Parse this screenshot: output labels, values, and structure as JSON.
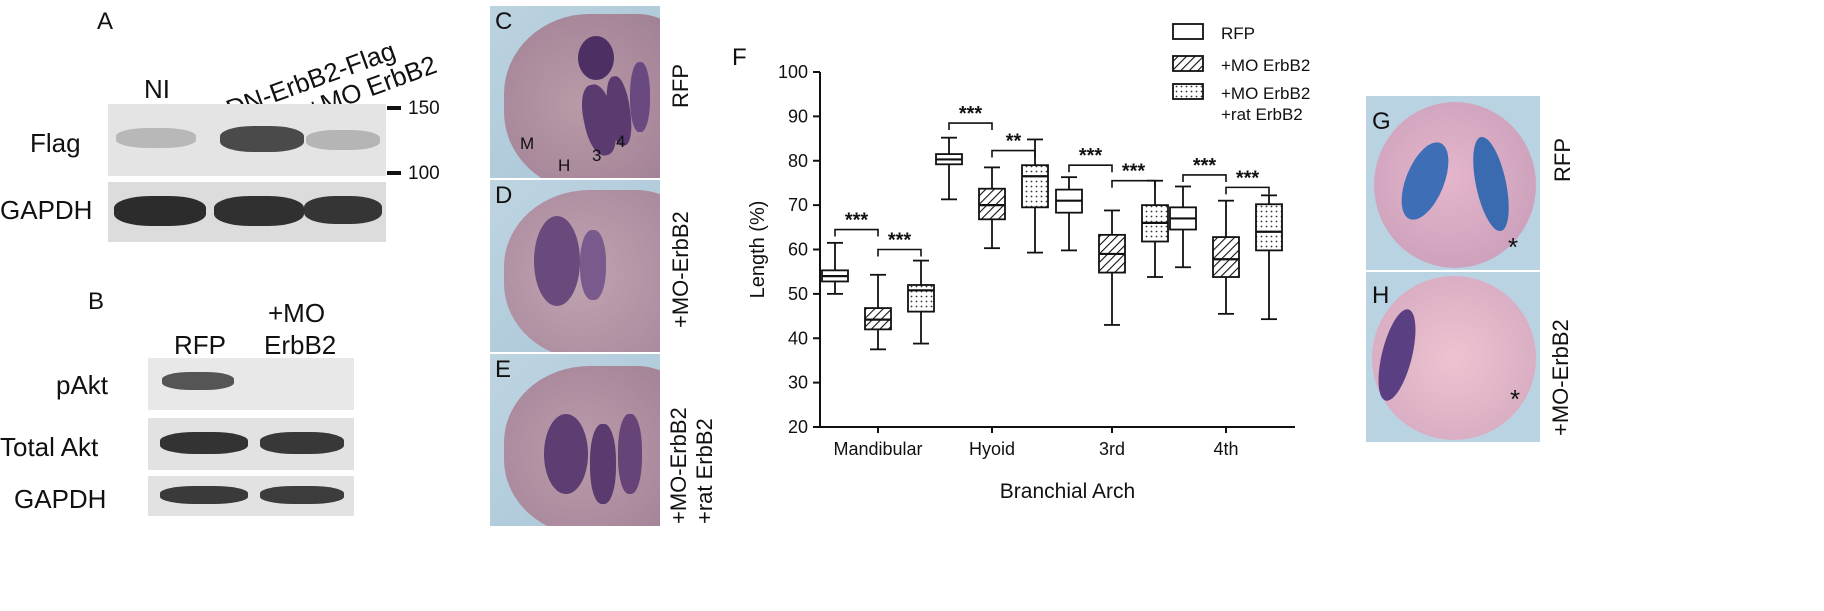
{
  "panels": {
    "A": {
      "label": "A",
      "lane_labels": [
        "NI",
        "DN-ErbB2-Flag",
        "+MO ErbB2"
      ],
      "row_labels": [
        "Flag",
        "GAPDH"
      ],
      "markers": [
        "150",
        "100"
      ]
    },
    "B": {
      "label": "B",
      "lane_labels": [
        "RFP",
        "+MO",
        "ErbB2"
      ],
      "row_labels": [
        "pAkt",
        "Total Akt",
        "GAPDH"
      ]
    },
    "C": {
      "label": "C",
      "side_label": "RFP",
      "arch_labels": [
        "M",
        "H",
        "3",
        "4"
      ]
    },
    "D": {
      "label": "D",
      "side_label": "+MO-ErbB2"
    },
    "E": {
      "label": "E",
      "side_label_1": "+MO-ErbB2",
      "side_label_2": "+rat ErbB2"
    },
    "F": {
      "label": "F"
    },
    "G": {
      "label": "G",
      "side_label": "RFP",
      "asterisk": "*"
    },
    "H": {
      "label": "H",
      "side_label": "+MO-ErbB2",
      "asterisk": "*"
    }
  },
  "chart_data": {
    "type": "boxplot",
    "xlabel": "Branchial Arch",
    "ylabel": "Length (%)",
    "ylim": [
      20,
      100
    ],
    "yticks": [
      20,
      30,
      40,
      50,
      60,
      70,
      80,
      90,
      100
    ],
    "categories": [
      "Mandibular",
      "Hyoid",
      "3rd",
      "4th"
    ],
    "legend_position": "top-right",
    "series": [
      {
        "name": "RFP",
        "pattern": "open",
        "boxes": [
          {
            "min": 50.0,
            "q1": 52.8,
            "median": 54.0,
            "q3": 55.3,
            "max": 61.5
          },
          {
            "min": 71.3,
            "q1": 79.2,
            "median": 80.3,
            "q3": 81.5,
            "max": 85.2
          },
          {
            "min": 59.8,
            "q1": 68.3,
            "median": 71.0,
            "q3": 73.5,
            "max": 76.3
          },
          {
            "min": 56.0,
            "q1": 64.5,
            "median": 67.0,
            "q3": 69.5,
            "max": 74.2
          }
        ]
      },
      {
        "name": "+MO ErbB2",
        "pattern": "hatched",
        "boxes": [
          {
            "min": 37.5,
            "q1": 42.0,
            "median": 44.2,
            "q3": 46.8,
            "max": 54.3
          },
          {
            "min": 60.3,
            "q1": 66.8,
            "median": 70.0,
            "q3": 73.7,
            "max": 78.5
          },
          {
            "min": 43.0,
            "q1": 54.8,
            "median": 59.0,
            "q3": 63.3,
            "max": 68.8
          },
          {
            "min": 45.5,
            "q1": 53.8,
            "median": 57.8,
            "q3": 62.8,
            "max": 71.0
          }
        ]
      },
      {
        "name": "+MO ErbB2\n+rat ErbB2",
        "pattern": "dotted",
        "boxes": [
          {
            "min": 38.8,
            "q1": 46.0,
            "median": 50.8,
            "q3": 52.0,
            "max": 57.5
          },
          {
            "min": 59.3,
            "q1": 69.5,
            "median": 76.5,
            "q3": 79.0,
            "max": 84.8
          },
          {
            "min": 53.8,
            "q1": 61.8,
            "median": 66.0,
            "q3": 70.0,
            "max": 75.5
          },
          {
            "min": 44.3,
            "q1": 59.8,
            "median": 64.0,
            "q3": 70.2,
            "max": 72.2
          }
        ]
      }
    ],
    "legend": [
      "RFP",
      "+MO ErbB2",
      "+MO ErbB2",
      "+rat ErbB2"
    ],
    "significance": [
      {
        "category": 0,
        "from": 0,
        "to": 1,
        "y": 64.5,
        "label": "***"
      },
      {
        "category": 0,
        "from": 1,
        "to": 2,
        "y": 60.0,
        "label": "***"
      },
      {
        "category": 1,
        "from": 0,
        "to": 1,
        "y": 88.5,
        "label": "***"
      },
      {
        "category": 1,
        "from": 1,
        "to": 2,
        "y": 82.3,
        "label": "**"
      },
      {
        "category": 2,
        "from": 0,
        "to": 1,
        "y": 79.0,
        "label": "***"
      },
      {
        "category": 2,
        "from": 1,
        "to": 2,
        "y": 75.5,
        "label": "***"
      },
      {
        "category": 3,
        "from": 0,
        "to": 1,
        "y": 76.8,
        "label": "***"
      },
      {
        "category": 3,
        "from": 1,
        "to": 2,
        "y": 74.0,
        "label": "***"
      }
    ]
  }
}
